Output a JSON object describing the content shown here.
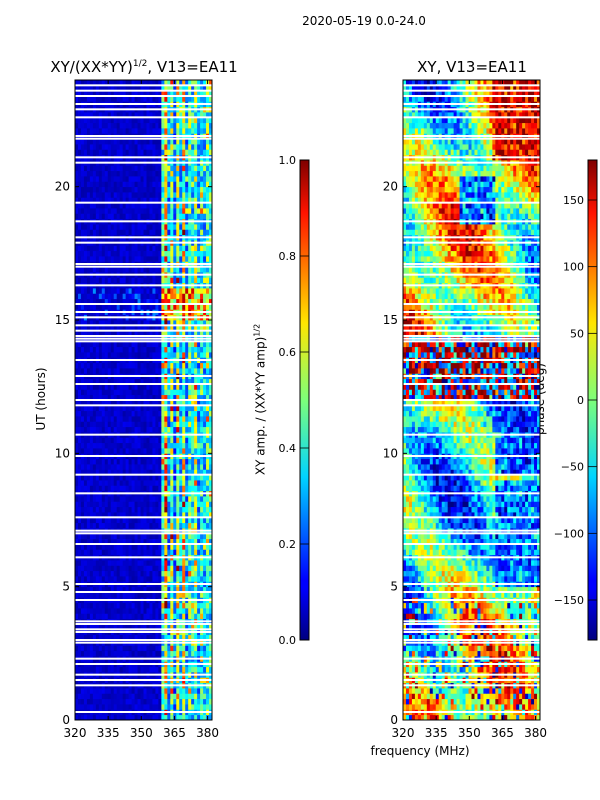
{
  "suptitle": "2020-05-19 0.0-24.0",
  "chart_data": [
    {
      "type": "heatmap",
      "id": "amp",
      "title_prefix": "XY/(XX*YY)",
      "title_sup": "1/2",
      "title_suffix": ", V13=EA11",
      "ylabel": "UT (hours)",
      "xlabel": "",
      "xlim": [
        320,
        382
      ],
      "ylim": [
        0,
        24
      ],
      "xticks": [
        320,
        335,
        350,
        365,
        380
      ],
      "yticks": [
        0,
        5,
        10,
        15,
        20
      ],
      "ytick_labels": [
        "0",
        "5",
        "10",
        "15",
        "20"
      ],
      "band_start_mhz": 360,
      "description": "low amplitude below ~360 MHz, bright striped channels 360-382 MHz, burst near 15-16 UT"
    },
    {
      "type": "heatmap",
      "id": "phase",
      "title": "XY, V13=EA11",
      "ylabel": "",
      "xlabel": "frequency (MHz)",
      "xlim": [
        320,
        382
      ],
      "ylim": [
        0,
        24
      ],
      "xticks": [
        320,
        335,
        350,
        365,
        380
      ],
      "yticks": [
        0,
        5,
        10,
        15,
        20
      ],
      "ytick_labels": [
        "0",
        "5",
        "10",
        "15",
        "20"
      ]
    }
  ],
  "colorbars": [
    {
      "id": "amp-cbar",
      "label_prefix": "XY amp. / (XX*YY amp)",
      "label_sup": "1/2",
      "range": [
        0.0,
        1.0
      ],
      "ticks": [
        0.0,
        0.2,
        0.4,
        0.6,
        0.8,
        1.0
      ],
      "tick_labels": [
        "0.0",
        "0.2",
        "0.4",
        "0.6",
        "0.8",
        "1.0"
      ]
    },
    {
      "id": "phase-cbar",
      "label": "phase (deg)",
      "range": [
        -180,
        180
      ],
      "ticks": [
        -150,
        -100,
        -50,
        0,
        50,
        100,
        150
      ],
      "tick_labels": [
        "−150",
        "−100",
        "−50",
        "0",
        "50",
        "100",
        "150"
      ]
    }
  ],
  "flagged_rows_ut": [
    0.3,
    1.3,
    1.5,
    1.7,
    2.1,
    2.3,
    2.9,
    3.0,
    3.3,
    3.4,
    3.6,
    3.7,
    4.5,
    4.8,
    5.1,
    6.1,
    6.6,
    7.0,
    7.1,
    7.6,
    8.5,
    9.2,
    9.9,
    10.7,
    11.8,
    12.0,
    12.6,
    12.9,
    13.5,
    14.2,
    14.3,
    14.4,
    14.6,
    14.8,
    15.1,
    15.3,
    15.6,
    16.3,
    16.7,
    17.0,
    17.1,
    17.9,
    18.1,
    18.7,
    19.4,
    20.9,
    21.1,
    21.8,
    21.9,
    22.6,
    22.9,
    23.1,
    23.4,
    23.6,
    23.8
  ]
}
